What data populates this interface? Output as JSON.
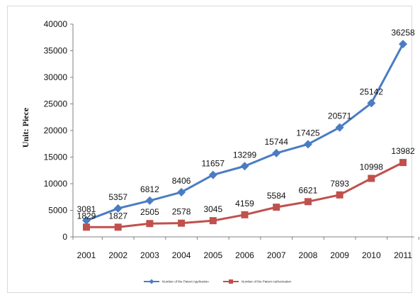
{
  "chart_data": {
    "type": "line",
    "title": "",
    "xlabel": "",
    "ylabel": "Unit: Piece",
    "x": [
      "2001",
      "2002",
      "2003",
      "2004",
      "2005",
      "2006",
      "2007",
      "2008",
      "2009",
      "2010",
      "2011"
    ],
    "ylim": [
      0,
      40000
    ],
    "yticks": [
      "0",
      "5000",
      "10000",
      "15000",
      "20000",
      "25000",
      "30000",
      "35000",
      "40000"
    ],
    "grid": false,
    "legend_position": "bottom",
    "series": [
      {
        "name": "Number of the Patent Application",
        "color": "#4a7cc3",
        "marker": "diamond",
        "values": [
          3081,
          5357,
          6812,
          8406,
          11657,
          13299,
          15744,
          17425,
          20571,
          25142,
          36258
        ]
      },
      {
        "name": "Number of the Patent Authorization",
        "color": "#c0504d",
        "marker": "square",
        "values": [
          1829,
          1827,
          2505,
          2578,
          3045,
          4159,
          5584,
          6621,
          7893,
          10998,
          13982
        ]
      }
    ]
  }
}
